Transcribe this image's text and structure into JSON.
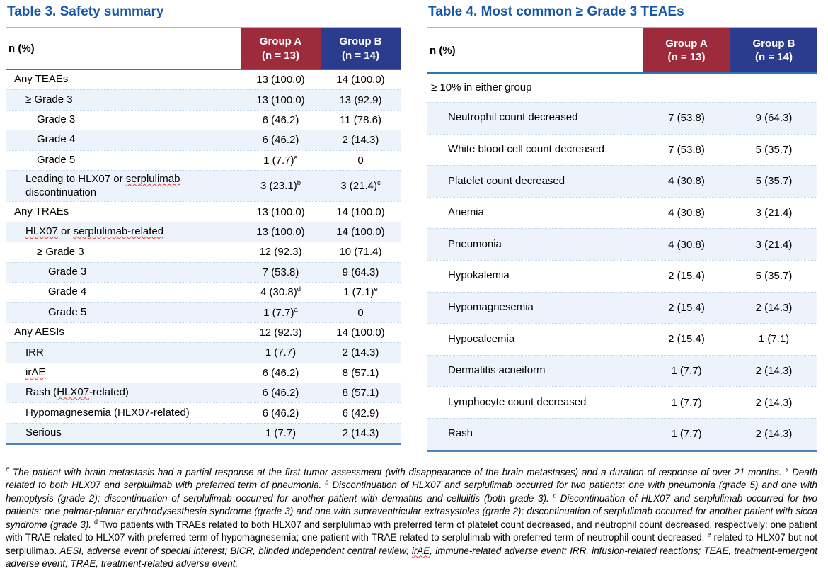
{
  "colors": {
    "title_blue": "#1758A8",
    "group_a_bg": "#9E2B3C",
    "group_b_bg": "#2B3C8E",
    "top_rule": "#9CB8D9",
    "header_rule": "#2E74B5",
    "bottom_rule": "#4E81BD",
    "row_line": "#BDD7EE",
    "shade": "#EDF3FA",
    "squiggle": "#E03C31"
  },
  "table3": {
    "title": "Table 3. Safety summary",
    "col_header": "n (%)",
    "groups": [
      {
        "label": "Group A",
        "n": "(n = 13)"
      },
      {
        "label": "Group B",
        "n": "(n = 14)"
      }
    ],
    "rows": [
      {
        "label": "Any TEAEs",
        "indent": 0,
        "a": "13 (100.0)",
        "b": "14 (100.0)"
      },
      {
        "label": "≥ Grade 3",
        "indent": 1,
        "a": "13 (100.0)",
        "b": "13 (92.9)"
      },
      {
        "label": "Grade 3",
        "indent": 2,
        "a": "6 (46.2)",
        "b": "11 (78.6)"
      },
      {
        "label": "Grade 4",
        "indent": 2,
        "a": "6 (46.2)",
        "b": "2 (14.3)"
      },
      {
        "label": "Grade 5",
        "indent": 2,
        "a": "1 (7.7)",
        "a_sup": "a",
        "b": "0"
      },
      {
        "label": "Leading to HLX07 or serplulimab discontinuation",
        "indent": 1,
        "squiggle": [
          "serplulimab"
        ],
        "a": "3 (23.1)",
        "a_sup": "b",
        "b": "3 (21.4)",
        "b_sup": "c"
      },
      {
        "label": "Any TRAEs",
        "indent": 0,
        "a": "13 (100.0)",
        "b": "14 (100.0)"
      },
      {
        "label": "HLX07 or serplulimab-related",
        "indent": 1,
        "squiggle": [
          "HLX07",
          "serplulimab-related"
        ],
        "a": "13 (100.0)",
        "b": "14 (100.0)"
      },
      {
        "label": "≥ Grade 3",
        "indent": 2,
        "a": "12 (92.3)",
        "b": "10 (71.4)"
      },
      {
        "label": "Grade 3",
        "indent": 3,
        "a": "7 (53.8)",
        "b": "9 (64.3)"
      },
      {
        "label": "Grade 4",
        "indent": 3,
        "a": "4 (30.8)",
        "a_sup": "d",
        "b": "1 (7.1)",
        "b_sup": "e"
      },
      {
        "label": "Grade 5",
        "indent": 3,
        "a": "1 (7.7)",
        "a_sup": "a",
        "b": "0"
      },
      {
        "label": "Any AESIs",
        "indent": 0,
        "a": "12 (92.3)",
        "b": "14 (100.0)"
      },
      {
        "label": "IRR",
        "indent": 1,
        "a": "1 (7.7)",
        "b": "2 (14.3)"
      },
      {
        "label": "irAE",
        "indent": 1,
        "squiggle": [
          "irAE"
        ],
        "a": "6 (46.2)",
        "b": "8 (57.1)"
      },
      {
        "label": "Rash (HLX07-related)",
        "indent": 1,
        "squiggle": [
          "HLX07"
        ],
        "a": "6 (46.2)",
        "b": "8 (57.1)"
      },
      {
        "label": "Hypomagnesemia (HLX07-related)",
        "indent": 1,
        "a": "6 (46.2)",
        "b": "6 (42.9)"
      },
      {
        "label": "Serious",
        "indent": 1,
        "a": "1 (7.7)",
        "b": "2 (14.3)"
      }
    ]
  },
  "table4": {
    "title": "Table 4. Most common ≥ Grade 3 TEAEs",
    "col_header": "n (%)",
    "groups": [
      {
        "label": "Group A",
        "n": "(n = 13)"
      },
      {
        "label": "Group B",
        "n": "(n = 14)"
      }
    ],
    "rows": [
      {
        "label": "≥ 10% in either group",
        "indent": 0,
        "span": true
      },
      {
        "label": "Neutrophil count decreased",
        "indent": 1,
        "a": "7 (53.8)",
        "b": "9 (64.3)"
      },
      {
        "label": "White blood cell count decreased",
        "indent": 1,
        "a": "7 (53.8)",
        "b": "5 (35.7)"
      },
      {
        "label": "Platelet count decreased",
        "indent": 1,
        "a": "4 (30.8)",
        "b": "5 (35.7)"
      },
      {
        "label": "Anemia",
        "indent": 1,
        "a": "4 (30.8)",
        "b": "3 (21.4)"
      },
      {
        "label": "Pneumonia",
        "indent": 1,
        "a": "4 (30.8)",
        "b": "3 (21.4)"
      },
      {
        "label": "Hypokalemia",
        "indent": 1,
        "a": "2 (15.4)",
        "b": "5 (35.7)"
      },
      {
        "label": "Hypomagnesemia",
        "indent": 1,
        "a": "2 (15.4)",
        "b": "2 (14.3)"
      },
      {
        "label": "Hypocalcemia",
        "indent": 1,
        "a": "2 (15.4)",
        "b": "1 (7.1)"
      },
      {
        "label": "Dermatitis acneiform",
        "indent": 1,
        "a": "1 (7.7)",
        "b": "2 (14.3)"
      },
      {
        "label": "Lymphocyte count decreased",
        "indent": 1,
        "a": "1 (7.7)",
        "b": "2 (14.3)"
      },
      {
        "label": "Rash",
        "indent": 1,
        "a": "1 (7.7)",
        "b": "2 (14.3)"
      }
    ]
  },
  "footnote": {
    "segments": [
      {
        "t": "#",
        "style": "italic",
        "sup": true
      },
      {
        "t": " The patient with brain metastasis had a partial response at the first tumor assessment (with disappearance of the brain metastases) and a duration of response of over 21 months. ",
        "style": "italic"
      },
      {
        "t": "a",
        "style": "italic",
        "sup": true
      },
      {
        "t": " Death related to both HLX07 and serplulimab with preferred term of pneumonia. ",
        "style": "italic"
      },
      {
        "t": "b",
        "style": "italic",
        "sup": true
      },
      {
        "t": " Discontinuation of HLX07 and serplulimab occurred for two patients: one with pneumonia (grade 5) and one with hemoptysis (grade 2); discontinuation of serplulimab occurred for another patient with dermatitis and cellulitis (both grade 3). ",
        "style": "italic"
      },
      {
        "t": "c",
        "style": "italic",
        "sup": true
      },
      {
        "t": " Discontinuation of HLX07 and serplulimab occurred for two patients: one palmar-plantar erythrodysesthesia syndrome (grade 3) and one with supraventricular extrasystoles (grade 2); discontinuation of serplulimab occurred for another patient with sicca syndrome (grade 3). ",
        "style": "italic"
      },
      {
        "t": "d",
        "style": "normal",
        "sup": true
      },
      {
        "t": " Two patients with TRAEs related to both HLX07 and serplulimab with preferred term of platelet count decreased, and neutrophil count decreased, respectively; one patient with TRAE related to HLX07 with preferred term of hypomagnesemia; one patient with TRAE related to serplulimab with preferred term of neutrophil count decreased. ",
        "style": "normal"
      },
      {
        "t": "e",
        "style": "normal",
        "sup": true
      },
      {
        "t": " related to HLX07 but not serplulimab. ",
        "style": "normal"
      },
      {
        "t": "AESI, adverse event of special interest; BICR, blinded independent central review; ",
        "style": "italic"
      },
      {
        "t": "irAE",
        "style": "italic",
        "sq": true
      },
      {
        "t": ", immune-related adverse event; IRR, infusion-related reactions; TEAE, treatment-emergent adverse event; TRAE, treatment-related adverse event.",
        "style": "italic"
      }
    ]
  }
}
